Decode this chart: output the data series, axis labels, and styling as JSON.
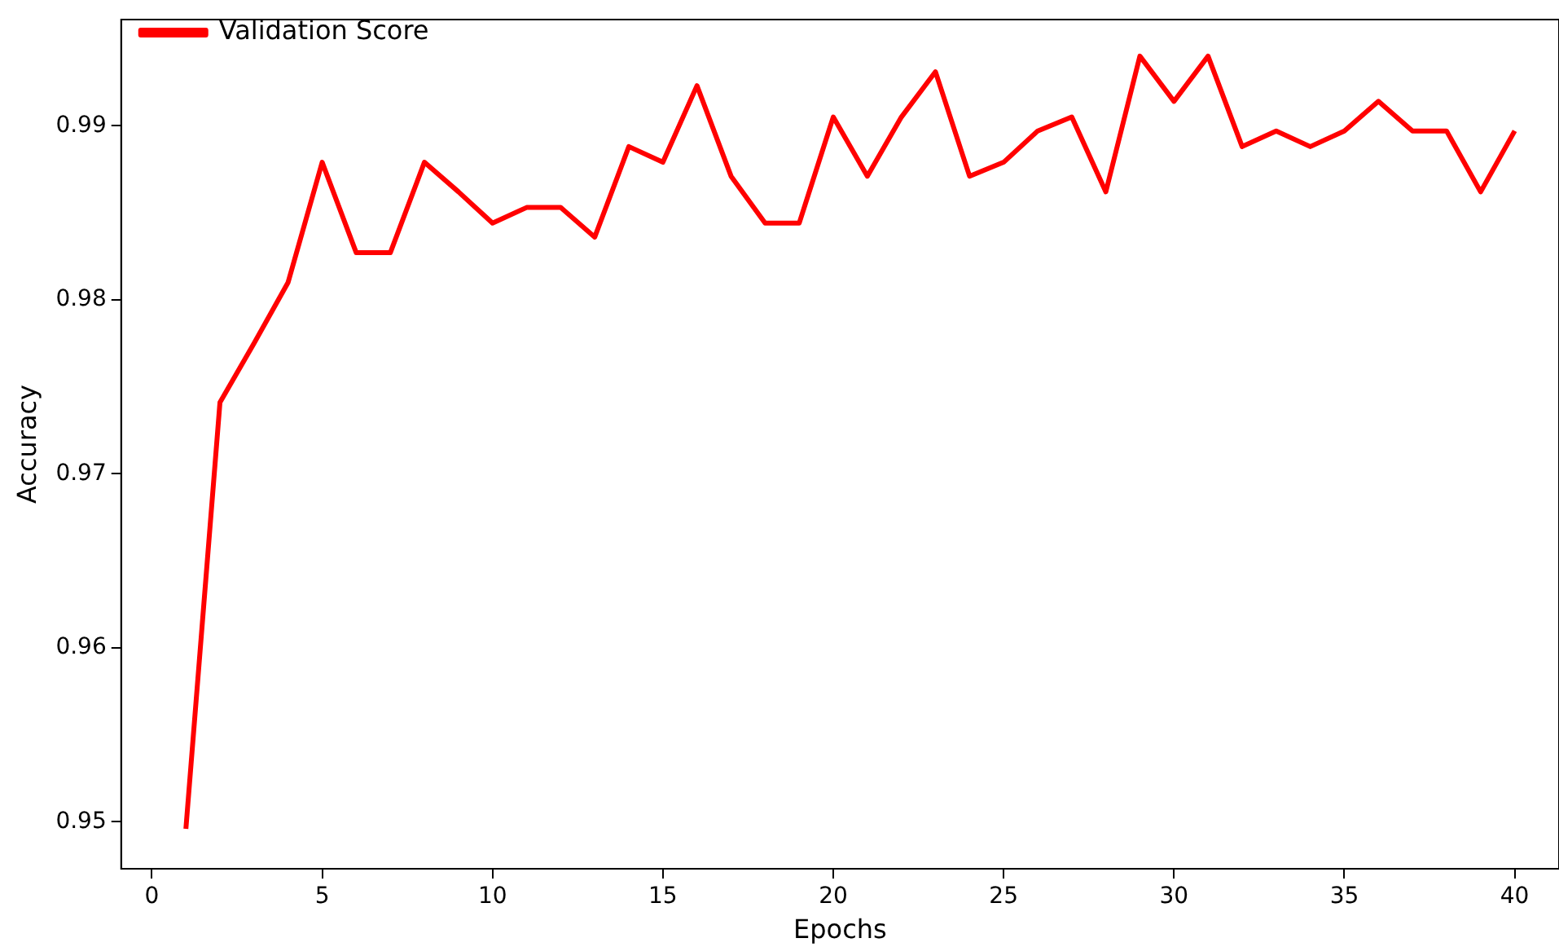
{
  "chart_data": {
    "type": "line",
    "xlabel": "Epochs",
    "ylabel": "Accuracy",
    "x": [
      1,
      2,
      3,
      4,
      5,
      6,
      7,
      8,
      9,
      10,
      11,
      12,
      13,
      14,
      15,
      16,
      17,
      18,
      19,
      20,
      21,
      22,
      23,
      24,
      25,
      26,
      27,
      28,
      29,
      30,
      31,
      32,
      33,
      34,
      35,
      36,
      37,
      38,
      39,
      40
    ],
    "series": [
      {
        "name": "Validation Score",
        "color": "#ff0000",
        "values": [
          0.9496,
          0.9741,
          0.9775,
          0.981,
          0.9879,
          0.9827,
          0.9827,
          0.9879,
          0.9862,
          0.9844,
          0.9853,
          0.9853,
          0.9836,
          0.9888,
          0.9879,
          0.9923,
          0.9871,
          0.9844,
          0.9844,
          0.9905,
          0.9871,
          0.9905,
          0.9931,
          0.9871,
          0.9879,
          0.9897,
          0.9905,
          0.9862,
          0.994,
          0.9914,
          0.994,
          0.9888,
          0.9897,
          0.9888,
          0.9897,
          0.9914,
          0.9897,
          0.9897,
          0.9862,
          0.9897
        ]
      }
    ],
    "xlim": [
      -0.9,
      41.3
    ],
    "ylim": [
      0.9473,
      0.9961
    ],
    "xticks": [
      0,
      5,
      10,
      15,
      20,
      25,
      30,
      35,
      40
    ],
    "yticks": [
      0.95,
      0.96,
      0.97,
      0.98,
      0.99
    ],
    "legend": "top left",
    "grid": false,
    "marker": "none",
    "line_style": "solid"
  }
}
